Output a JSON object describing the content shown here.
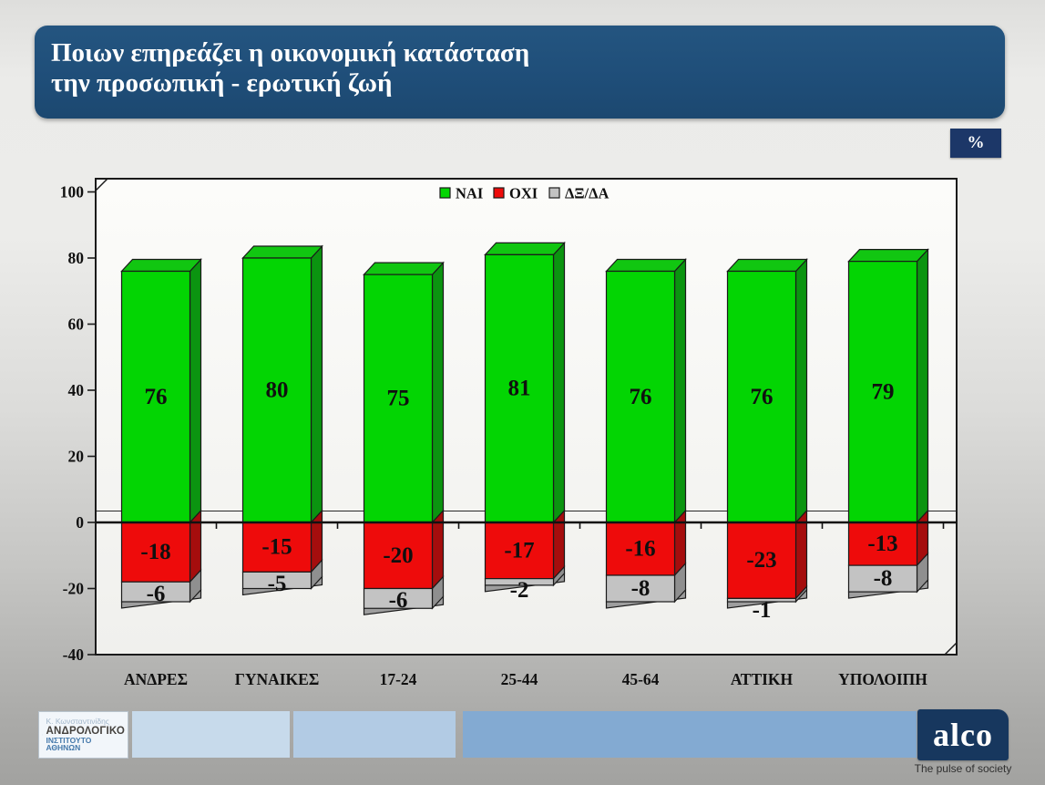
{
  "title": {
    "line1": "Ποιων επηρεάζει η οικονομική κατάσταση",
    "line2": "την προσωπική - ερωτική ζωή"
  },
  "unit_badge": "%",
  "chart_data": {
    "type": "bar",
    "stacked": true,
    "title": "",
    "xlabel": "",
    "ylabel": "",
    "ylim": [
      -40,
      100
    ],
    "yticks": [
      100,
      80,
      60,
      40,
      20,
      0,
      -20,
      -40
    ],
    "grid": false,
    "legend_position": "top-center",
    "categories": [
      "ΑΝΔΡΕΣ",
      "ΓΥΝΑΙΚΕΣ",
      "17-24",
      "25-44",
      "45-64",
      "ΑΤΤΙΚΗ",
      "ΥΠΟΛΟΙΠΗ"
    ],
    "series": [
      {
        "name": "ΝΑΙ",
        "color": "#03d503",
        "top_color": "#11c611",
        "side_color": "#0b9410",
        "values": [
          76,
          80,
          75,
          81,
          76,
          76,
          79
        ]
      },
      {
        "name": "ΟΧΙ",
        "color": "#ee0b0b",
        "top_color": "#d40c0c",
        "side_color": "#a50d0d",
        "values": [
          -18,
          -15,
          -20,
          -17,
          -16,
          -23,
          -13
        ]
      },
      {
        "name": "ΔΞ/ΔΑ",
        "color": "#c3c3c3",
        "top_color": "#b4b4b4",
        "side_color": "#8f8f8f",
        "bottom_color": "#9e9e9e",
        "values": [
          -6,
          -5,
          -6,
          -2,
          -8,
          -1,
          -8
        ]
      }
    ]
  },
  "footer": {
    "institute": {
      "line1": "Κ. Κωνσταντινίδης",
      "line2": "ΑΝΔΡΟΛΟΓΙΚΟ",
      "line3": "ΙΝΣΤΙΤΟΥΤΟ ΑΘΗΝΩΝ"
    },
    "alco": {
      "name": "alco",
      "tagline": "The pulse of society",
      "brand_color": "#17375e"
    }
  }
}
